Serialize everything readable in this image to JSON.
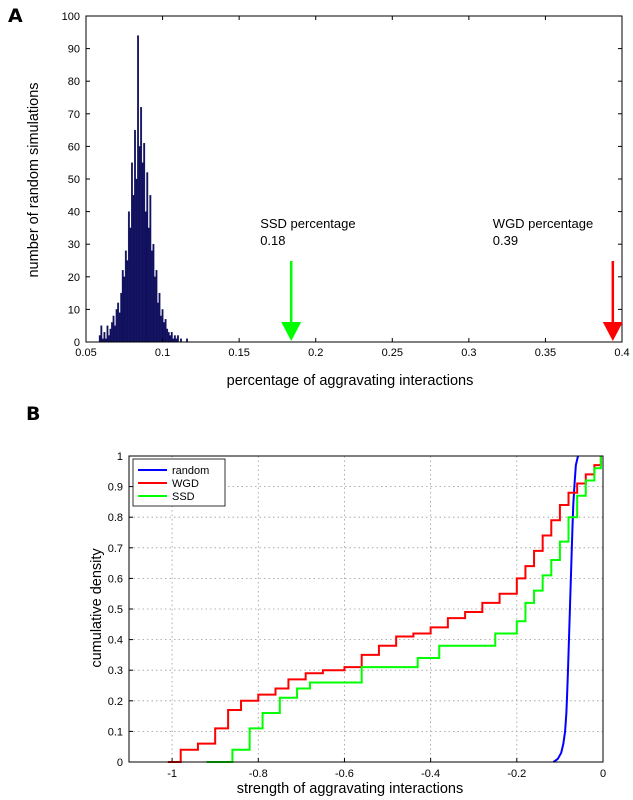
{
  "chart_data": [
    {
      "panel": "A",
      "type": "bar",
      "xlabel": "percentage of aggravating interactions",
      "ylabel": "number of random simulations",
      "xlim": [
        0.05,
        0.4
      ],
      "ylim": [
        0,
        100
      ],
      "xticks": [
        "0.05",
        "0.1",
        "0.15",
        "0.2",
        "0.25",
        "0.3",
        "0.35",
        "0.4"
      ],
      "yticks": [
        "0",
        "10",
        "20",
        "30",
        "40",
        "50",
        "60",
        "70",
        "80",
        "90",
        "100"
      ],
      "bin_width": 0.001,
      "bar_color": "#10105e",
      "bins": [
        [
          0.059,
          2
        ],
        [
          0.06,
          5
        ],
        [
          0.061,
          1
        ],
        [
          0.062,
          3
        ],
        [
          0.063,
          1
        ],
        [
          0.064,
          5
        ],
        [
          0.065,
          2
        ],
        [
          0.066,
          4
        ],
        [
          0.067,
          6
        ],
        [
          0.068,
          8
        ],
        [
          0.069,
          5
        ],
        [
          0.07,
          10
        ],
        [
          0.071,
          12
        ],
        [
          0.072,
          9
        ],
        [
          0.073,
          15
        ],
        [
          0.074,
          22
        ],
        [
          0.075,
          20
        ],
        [
          0.076,
          28
        ],
        [
          0.077,
          25
        ],
        [
          0.078,
          40
        ],
        [
          0.079,
          35
        ],
        [
          0.08,
          55
        ],
        [
          0.081,
          45
        ],
        [
          0.082,
          65
        ],
        [
          0.083,
          50
        ],
        [
          0.084,
          94
        ],
        [
          0.085,
          60
        ],
        [
          0.086,
          72
        ],
        [
          0.087,
          55
        ],
        [
          0.088,
          61
        ],
        [
          0.089,
          40
        ],
        [
          0.09,
          52
        ],
        [
          0.091,
          35
        ],
        [
          0.092,
          45
        ],
        [
          0.093,
          28
        ],
        [
          0.094,
          30
        ],
        [
          0.095,
          20
        ],
        [
          0.096,
          22
        ],
        [
          0.097,
          12
        ],
        [
          0.098,
          15
        ],
        [
          0.099,
          8
        ],
        [
          0.1,
          10
        ],
        [
          0.101,
          6
        ],
        [
          0.102,
          7
        ],
        [
          0.103,
          4
        ],
        [
          0.104,
          3
        ],
        [
          0.105,
          2
        ],
        [
          0.106,
          3
        ],
        [
          0.107,
          1
        ],
        [
          0.108,
          2
        ],
        [
          0.109,
          1
        ],
        [
          0.11,
          2
        ],
        [
          0.112,
          1
        ],
        [
          0.116,
          1
        ]
      ],
      "annotations": [
        {
          "label": "SSD percentage",
          "value": "0.18",
          "x": 0.184,
          "color": "#00ff00"
        },
        {
          "label": "WGD percentage",
          "value": "0.39",
          "x": 0.394,
          "color": "#ff0000"
        }
      ]
    },
    {
      "panel": "B",
      "type": "line",
      "xlabel": "strength of aggravating interactions",
      "ylabel": "cumulative density",
      "xlim": [
        -1.1,
        0
      ],
      "ylim": [
        0,
        1
      ],
      "xticks": [
        "-1",
        "-0.8",
        "-0.6",
        "-0.4",
        "-0.2",
        "0"
      ],
      "yticks": [
        "0",
        "0.1",
        "0.2",
        "0.3",
        "0.4",
        "0.5",
        "0.6",
        "0.7",
        "0.8",
        "0.9",
        "1"
      ],
      "grid": true,
      "legend_position": "top-left",
      "series": [
        {
          "name": "random",
          "color": "#0000ff",
          "x": [
            -0.115,
            -0.105,
            -0.097,
            -0.092,
            -0.088,
            -0.085,
            -0.083,
            -0.081,
            -0.079,
            -0.077,
            -0.075,
            -0.073,
            -0.071,
            -0.069,
            -0.066,
            -0.063,
            -0.058
          ],
          "y": [
            0.0,
            0.01,
            0.03,
            0.06,
            0.1,
            0.16,
            0.23,
            0.31,
            0.4,
            0.49,
            0.58,
            0.67,
            0.76,
            0.84,
            0.91,
            0.97,
            1.0
          ]
        },
        {
          "name": "WGD",
          "color": "#ff0000",
          "x": [
            -1.01,
            -0.98,
            -0.94,
            -0.9,
            -0.87,
            -0.84,
            -0.8,
            -0.76,
            -0.73,
            -0.69,
            -0.65,
            -0.6,
            -0.56,
            -0.52,
            -0.48,
            -0.44,
            -0.4,
            -0.36,
            -0.32,
            -0.28,
            -0.24,
            -0.2,
            -0.18,
            -0.16,
            -0.14,
            -0.12,
            -0.1,
            -0.08,
            -0.06,
            -0.04,
            -0.02,
            -0.005
          ],
          "y": [
            0.0,
            0.04,
            0.06,
            0.11,
            0.17,
            0.2,
            0.22,
            0.24,
            0.27,
            0.29,
            0.3,
            0.31,
            0.35,
            0.38,
            0.41,
            0.42,
            0.44,
            0.47,
            0.49,
            0.52,
            0.55,
            0.6,
            0.64,
            0.69,
            0.74,
            0.79,
            0.84,
            0.88,
            0.91,
            0.94,
            0.97,
            1.0
          ]
        },
        {
          "name": "SSD",
          "color": "#00ff00",
          "x": [
            -0.92,
            -0.86,
            -0.82,
            -0.79,
            -0.75,
            -0.71,
            -0.68,
            -0.56,
            -0.43,
            -0.38,
            -0.25,
            -0.2,
            -0.18,
            -0.16,
            -0.14,
            -0.12,
            -0.1,
            -0.08,
            -0.06,
            -0.04,
            -0.02,
            -0.005
          ],
          "y": [
            0.0,
            0.04,
            0.11,
            0.16,
            0.21,
            0.24,
            0.26,
            0.31,
            0.34,
            0.38,
            0.42,
            0.46,
            0.52,
            0.56,
            0.61,
            0.66,
            0.72,
            0.8,
            0.87,
            0.92,
            0.96,
            1.0
          ]
        }
      ]
    }
  ]
}
